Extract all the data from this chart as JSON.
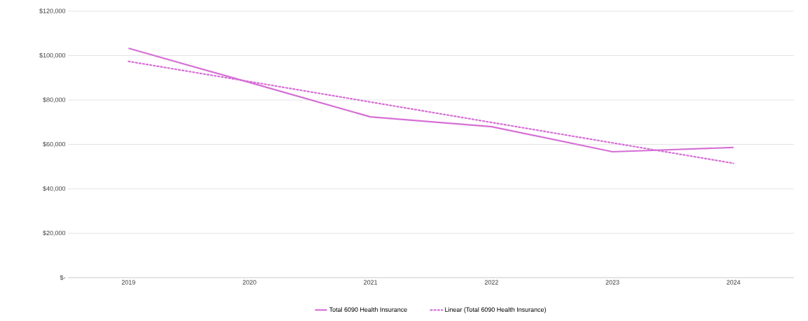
{
  "chart_data": {
    "type": "line",
    "categories": [
      "2019",
      "2020",
      "2021",
      "2022",
      "2023",
      "2024"
    ],
    "series": [
      {
        "name": "Total 6090 Health Insurance",
        "color": "#d66fd6",
        "values": [
          103300,
          87900,
          72400,
          68000,
          56700,
          58600
        ],
        "line_style": "solid"
      },
      {
        "name": "Linear (Total 6090 Health Insurance)",
        "color": "#d66fd6",
        "values": [
          97400,
          88300,
          79100,
          69900,
          60700,
          51500
        ],
        "line_style": "dotted"
      }
    ],
    "ylim": [
      0,
      120000
    ],
    "yticks": [
      {
        "value": 0,
        "label": "$-"
      },
      {
        "value": 20000,
        "label": "$20,000"
      },
      {
        "value": 40000,
        "label": "$40,000"
      },
      {
        "value": 60000,
        "label": "$60,000"
      },
      {
        "value": 80000,
        "label": "$80,000"
      },
      {
        "value": 100000,
        "label": "$100,000"
      },
      {
        "value": 120000,
        "label": "$120,000"
      }
    ],
    "grid": "y",
    "legend": "bottom"
  }
}
